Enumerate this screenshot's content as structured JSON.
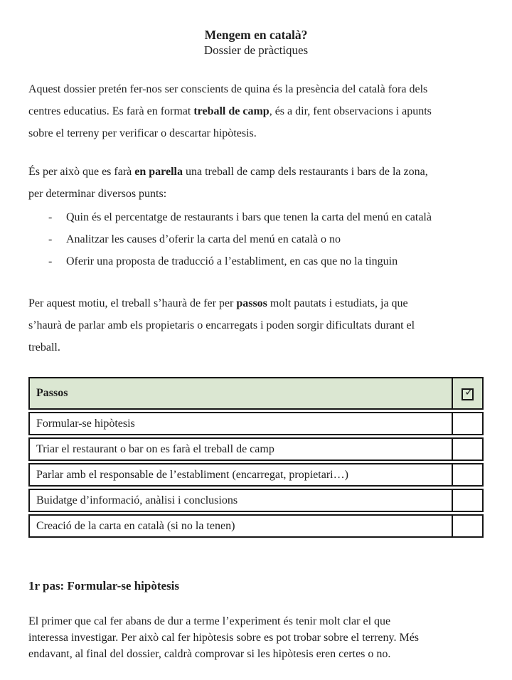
{
  "doc": {
    "title": "Mengem en català?",
    "subtitle": "Dossier de pràctiques"
  },
  "para1": {
    "line1": "Aquest dossier pretén fer-nos ser conscients de quina és la presència del català fora dels",
    "line2_pre": "centres educatius. Es farà en format ",
    "line2_bold": "treball de camp",
    "line2_post": ", és a dir, fent observacions i apunts",
    "line3": "sobre el terreny per verificar o descartar hipòtesis."
  },
  "para2": {
    "line1_pre": "És per això que es farà ",
    "line1_bold": "en parella",
    "line1_post": " una treball de camp dels restaurants i bars de la zona,",
    "line2": "per determinar diversos punts:"
  },
  "bullets": {
    "marker": "-",
    "item1": "Quin és el percentatge de restaurants i bars que tenen la carta del menú en català",
    "item2": "Analitzar les causes d’oferir la carta del menú en català o no",
    "item3": "Oferir una proposta de traducció a l’establiment, en cas que no la tinguin"
  },
  "para3": {
    "line1_pre": "Per aquest motiu, el treball s’haurà de fer per ",
    "line1_bold": "passos",
    "line1_post": " molt pautats i estudiats, ja que",
    "line2": "s’haurà de parlar amb els propietaris o encarregats i poden sorgir dificultats durant el",
    "line3": "treball."
  },
  "table": {
    "header": "Passos",
    "check_icon": "✓",
    "header_bg": "#dbe7d2",
    "rows": [
      "Formular-se hipòtesis",
      "Triar el restaurant o bar on es farà el treball de camp",
      "Parlar amb el responsable de l’establiment (encarregat, propietari…)",
      "Buidatge d’informació, anàlisi i conclusions",
      "Creació de la carta en català (si no la tenen)"
    ]
  },
  "section": {
    "heading": "1r pas: Formular-se hipòtesis"
  },
  "para4": {
    "line1": "El primer que cal fer abans de dur a terme l’experiment és tenir molt clar el que",
    "line2": "interessa investigar. Per això cal fer hipòtesis sobre es pot trobar sobre el terreny. Més",
    "line3": "endavant, al final del dossier, caldrà comprovar si les hipòtesis eren certes o no."
  }
}
